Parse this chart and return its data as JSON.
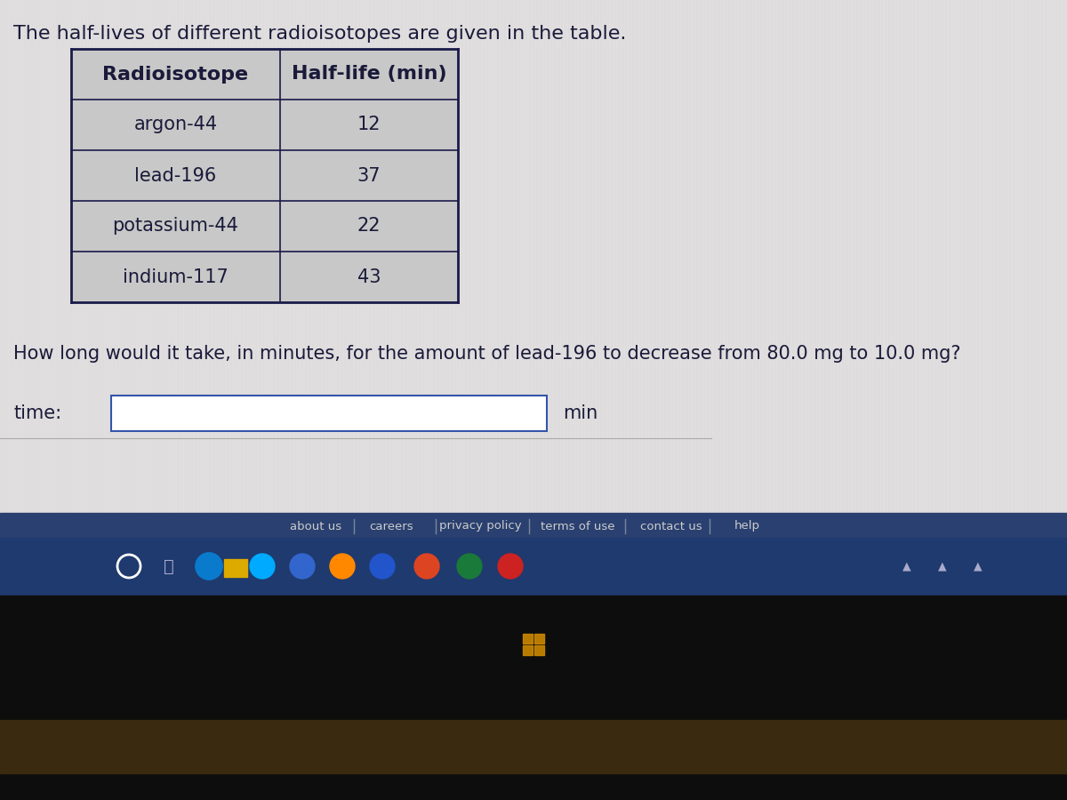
{
  "title": "The half-lives of different radioisotopes are given in the table.",
  "table_headers": [
    "Radioisotope",
    "Half-life (min)"
  ],
  "table_rows": [
    [
      "argon-44",
      "12"
    ],
    [
      "lead-196",
      "37"
    ],
    [
      "potassium-44",
      "22"
    ],
    [
      "indium-117",
      "43"
    ]
  ],
  "question": "How long would it take, in minutes, for the amount of lead-196 to decrease from 80.0 mg to 10.0 mg?",
  "answer_label": "time:",
  "answer_unit": "min",
  "footer_links": [
    "about us",
    "careers",
    "privacy policy",
    "terms of use",
    "contact us",
    "help"
  ],
  "content_bg": "#dcdcdc",
  "table_bg": "#cccccc",
  "table_border_color": "#1a1a4a",
  "text_color": "#1a1a3a",
  "header_font_size": 16,
  "body_font_size": 15,
  "title_font_size": 16,
  "question_font_size": 15,
  "taskbar_bg": "#1e3a6e",
  "footer_bg": "#2a4a7e",
  "bottom_dark": "#111111",
  "win_logo_color": "#cc8800"
}
